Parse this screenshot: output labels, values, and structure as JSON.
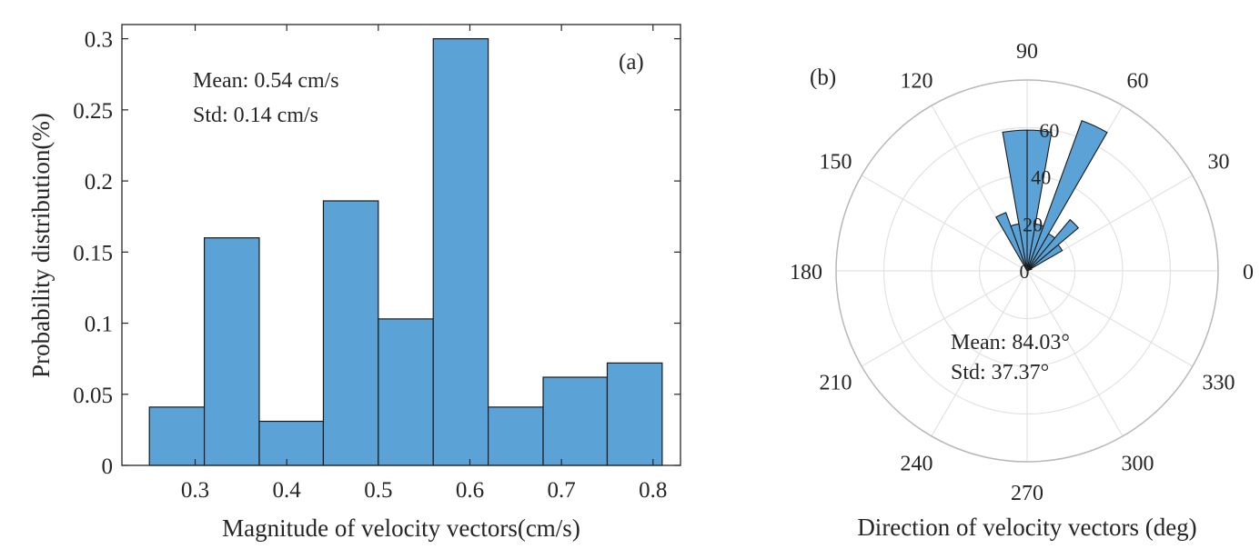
{
  "chart_data": [
    {
      "type": "bar",
      "panel_label": "(a)",
      "xlabel": "Magnitude of velocity vectors(cm/s)",
      "ylabel": "Probability distribution(%)",
      "xlim": [
        0.22,
        0.83
      ],
      "ylim": [
        0,
        0.31
      ],
      "xticks": [
        "0.3",
        "0.4",
        "0.5",
        "0.6",
        "0.7",
        "0.8"
      ],
      "yticks": [
        "0",
        "0.05",
        "0.1",
        "0.15",
        "0.2",
        "0.25",
        "0.3"
      ],
      "bins": [
        {
          "x0": 0.25,
          "x1": 0.31,
          "value": 0.041
        },
        {
          "x0": 0.31,
          "x1": 0.37,
          "value": 0.16
        },
        {
          "x0": 0.37,
          "x1": 0.44,
          "value": 0.031
        },
        {
          "x0": 0.44,
          "x1": 0.5,
          "value": 0.186
        },
        {
          "x0": 0.5,
          "x1": 0.56,
          "value": 0.103
        },
        {
          "x0": 0.56,
          "x1": 0.62,
          "value": 0.3
        },
        {
          "x0": 0.62,
          "x1": 0.68,
          "value": 0.041
        },
        {
          "x0": 0.68,
          "x1": 0.75,
          "value": 0.062
        },
        {
          "x0": 0.75,
          "x1": 0.81,
          "value": 0.072
        }
      ],
      "annotations": [
        "Mean: 0.54 cm/s",
        "Std: 0.14 cm/s"
      ],
      "bar_color": "#5BA3D6",
      "grid": false
    },
    {
      "type": "polar-histogram",
      "panel_label": "(b)",
      "xlabel": "Direction of velocity vectors (deg)",
      "theta_ticks": [
        "0",
        "30",
        "60",
        "90",
        "120",
        "150",
        "180",
        "210",
        "240",
        "270",
        "300",
        "330"
      ],
      "r_ticks": [
        "0",
        "20",
        "40",
        "60"
      ],
      "rlim": [
        0,
        80
      ],
      "wedges": [
        {
          "theta0": 20,
          "theta1": 30,
          "r": 2
        },
        {
          "theta0": 30,
          "theta1": 40,
          "r": 17
        },
        {
          "theta0": 40,
          "theta1": 50,
          "r": 28
        },
        {
          "theta0": 50,
          "theta1": 60,
          "r": 18
        },
        {
          "theta0": 60,
          "theta1": 70,
          "r": 67
        },
        {
          "theta0": 70,
          "theta1": 80,
          "r": 20
        },
        {
          "theta0": 80,
          "theta1": 90,
          "r": 59
        },
        {
          "theta0": 90,
          "theta1": 100,
          "r": 59
        },
        {
          "theta0": 100,
          "theta1": 110,
          "r": 20
        },
        {
          "theta0": 110,
          "theta1": 120,
          "r": 26
        }
      ],
      "annotations": [
        "Mean: 84.03°",
        "Std: 37.37°"
      ],
      "bar_color": "#5BA3D6",
      "grid": true
    }
  ]
}
